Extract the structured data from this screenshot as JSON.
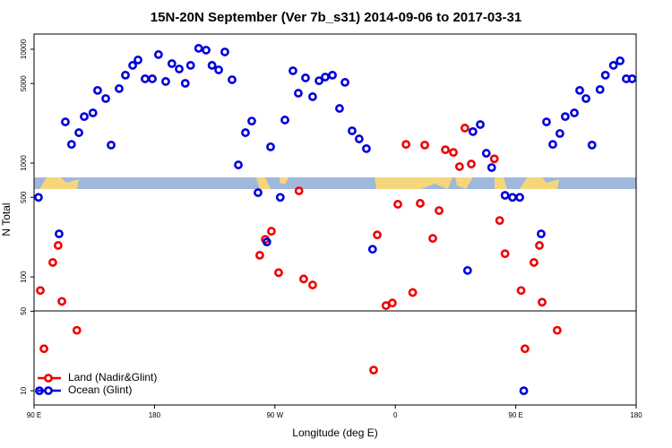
{
  "chart_data": {
    "type": "scatter",
    "title": "15N-20N September (Ver 7b_s31)   2014-09-06 to 2017-03-31",
    "x_label": "Longitude (deg E)",
    "y_label": "N Total",
    "log_y": true,
    "legend": "bottom-left",
    "xlim": [
      90,
      540
    ],
    "xticks": [
      {
        "value": 90,
        "label": "90 E"
      },
      180,
      {
        "value": 270,
        "label": "90 W"
      },
      {
        "value": 360,
        "label": "0"
      },
      {
        "value": 450,
        "label": "90 E"
      },
      {
        "value": 540,
        "label": "180"
      }
    ],
    "ylim": [
      7.5,
      13600
    ],
    "yticks": [
      10,
      50,
      100,
      500,
      1000,
      5000,
      10000
    ],
    "series": [
      {
        "name": "Land (Nadir&Glint)",
        "color": "#ee0000",
        "x": [
          94.7,
          97.4,
          104,
          108,
          110.8,
          122,
          262.8,
          258.7,
          267.4,
          272.8,
          288,
          291.5,
          298.2,
          343.8,
          346.5,
          353,
          357.8,
          361.9,
          368,
          373,
          378.6,
          382,
          388,
          392.7,
          397.4,
          403.4,
          408,
          412,
          416.8,
          434,
          438,
          442,
          454,
          456.9,
          463.6,
          467.7,
          469.7,
          481
        ],
        "values": [
          76,
          23.4,
          134,
          189,
          61,
          34,
          214,
          155,
          252,
          109,
          570,
          96,
          85,
          15.2,
          234,
          56,
          59,
          435,
          1460,
          73,
          443,
          1440,
          218,
          383,
          1310,
          1240,
          931,
          2030,
          981,
          1090,
          313,
          160,
          76,
          23.4,
          134,
          189,
          60,
          34
        ]
      },
      {
        "name": "Ocean (Glint)",
        "color": "#0000dd",
        "x": [
          93.3,
          94,
          108.7,
          113.4,
          118,
          123.5,
          127.5,
          134,
          137.5,
          143.6,
          147.6,
          153.6,
          158.3,
          163.7,
          167.7,
          173,
          178.4,
          183,
          188.4,
          193,
          198.5,
          203,
          207,
          213,
          218.6,
          223,
          228,
          232.6,
          238,
          242.7,
          248,
          252.7,
          257.4,
          264,
          266.8,
          274,
          277.5,
          283.5,
          287.5,
          292.9,
          298.2,
          303,
          307.6,
          313,
          318.3,
          322.4,
          327.7,
          333,
          338.4,
          343,
          414,
          418,
          423.5,
          428,
          432,
          442,
          447.6,
          453,
          456,
          469,
          473,
          477.7,
          483,
          487,
          493.8,
          497.8,
          502.5,
          507,
          513,
          517,
          523,
          528,
          532.6,
          537
        ],
        "values": [
          500,
          10,
          239,
          2300,
          1460,
          1850,
          2560,
          2760,
          4350,
          3690,
          1440,
          4510,
          5920,
          7220,
          8050,
          5500,
          5500,
          8980,
          5210,
          7480,
          6710,
          5020,
          7220,
          10190,
          9820,
          7220,
          6590,
          9470,
          5400,
          964,
          1850,
          2340,
          550,
          203,
          1390,
          500,
          2390,
          6470,
          4110,
          5600,
          3830,
          5290,
          5700,
          5920,
          3020,
          5120,
          1920,
          1630,
          1340,
          175,
          114,
          1890,
          2180,
          1220,
          914,
          521,
          500,
          500,
          10,
          239,
          2300,
          1460,
          1820,
          2560,
          2760,
          4350,
          3690,
          1440,
          4430,
          5920,
          7220,
          7910,
          5500,
          5500
        ]
      }
    ]
  }
}
